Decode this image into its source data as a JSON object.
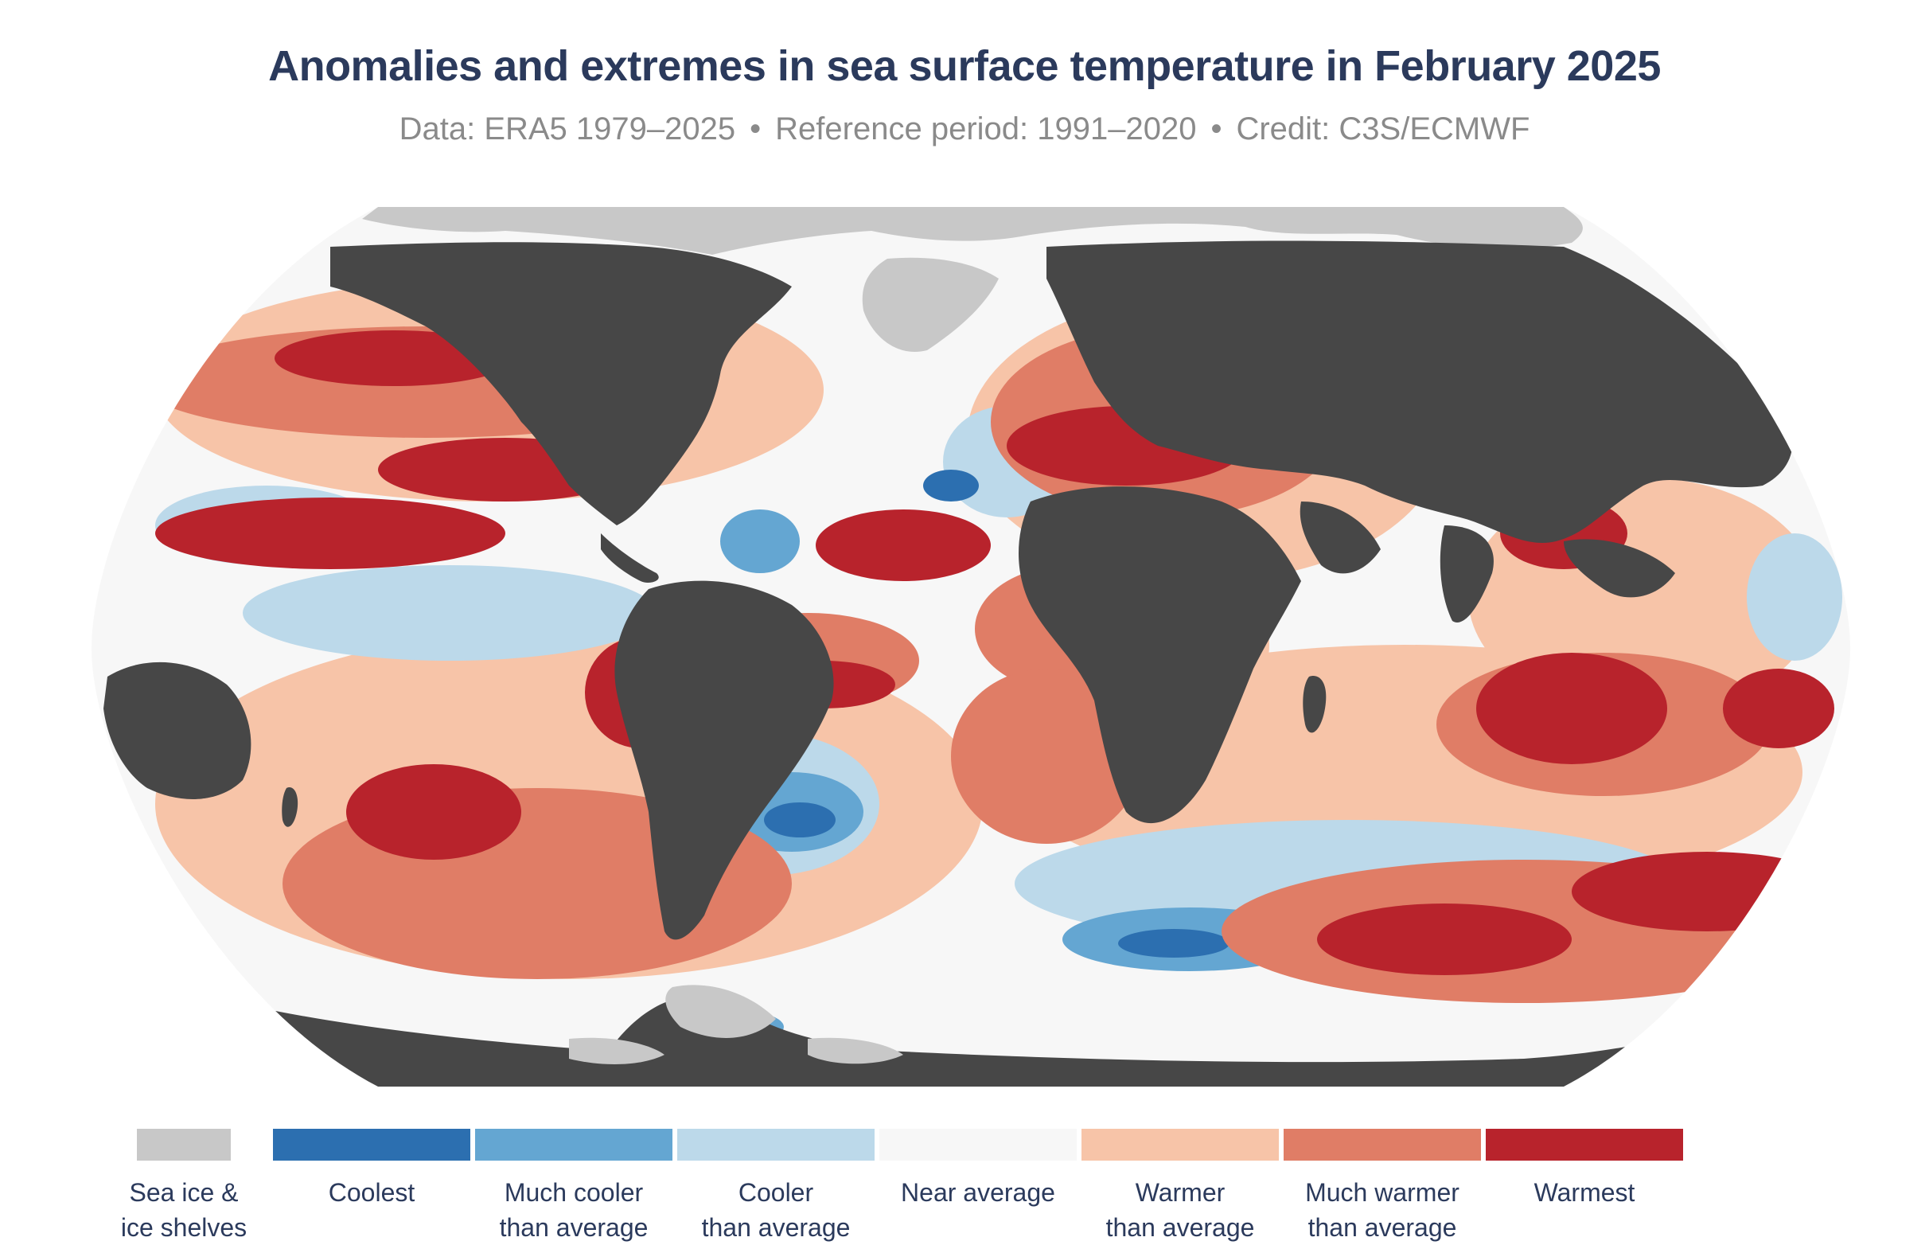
{
  "title": "Anomalies and extremes in sea surface temperature in February 2025",
  "subtitle": {
    "data": "Data: ERA5 1979–2025",
    "reference": "Reference period: 1991–2020",
    "credit": "Credit: C3S/ECMWF",
    "separator": "•"
  },
  "colors": {
    "ocean_frame": "#474747",
    "land": "#474747",
    "sea_ice": "#c8c8c8",
    "coolest": "#2c6fb0",
    "much_cooler": "#64a6d2",
    "cooler": "#bcd9ea",
    "near_average": "#f7f7f7",
    "warmer": "#f7c4a8",
    "much_warmer": "#e07d66",
    "warmest": "#b8232c"
  },
  "legend": [
    {
      "label": "Sea ice &\nice shelves",
      "color": "#c8c8c8"
    },
    {
      "label": "Coolest",
      "color": "#2c6fb0"
    },
    {
      "label": "Much cooler\nthan average",
      "color": "#64a6d2"
    },
    {
      "label": "Cooler\nthan average",
      "color": "#bcd9ea"
    },
    {
      "label": "Near average",
      "color": "#f7f7f7"
    },
    {
      "label": "Warmer\nthan average",
      "color": "#f7c4a8"
    },
    {
      "label": "Much warmer\nthan average",
      "color": "#e07d66"
    },
    {
      "label": "Warmest",
      "color": "#b8232c"
    }
  ]
}
